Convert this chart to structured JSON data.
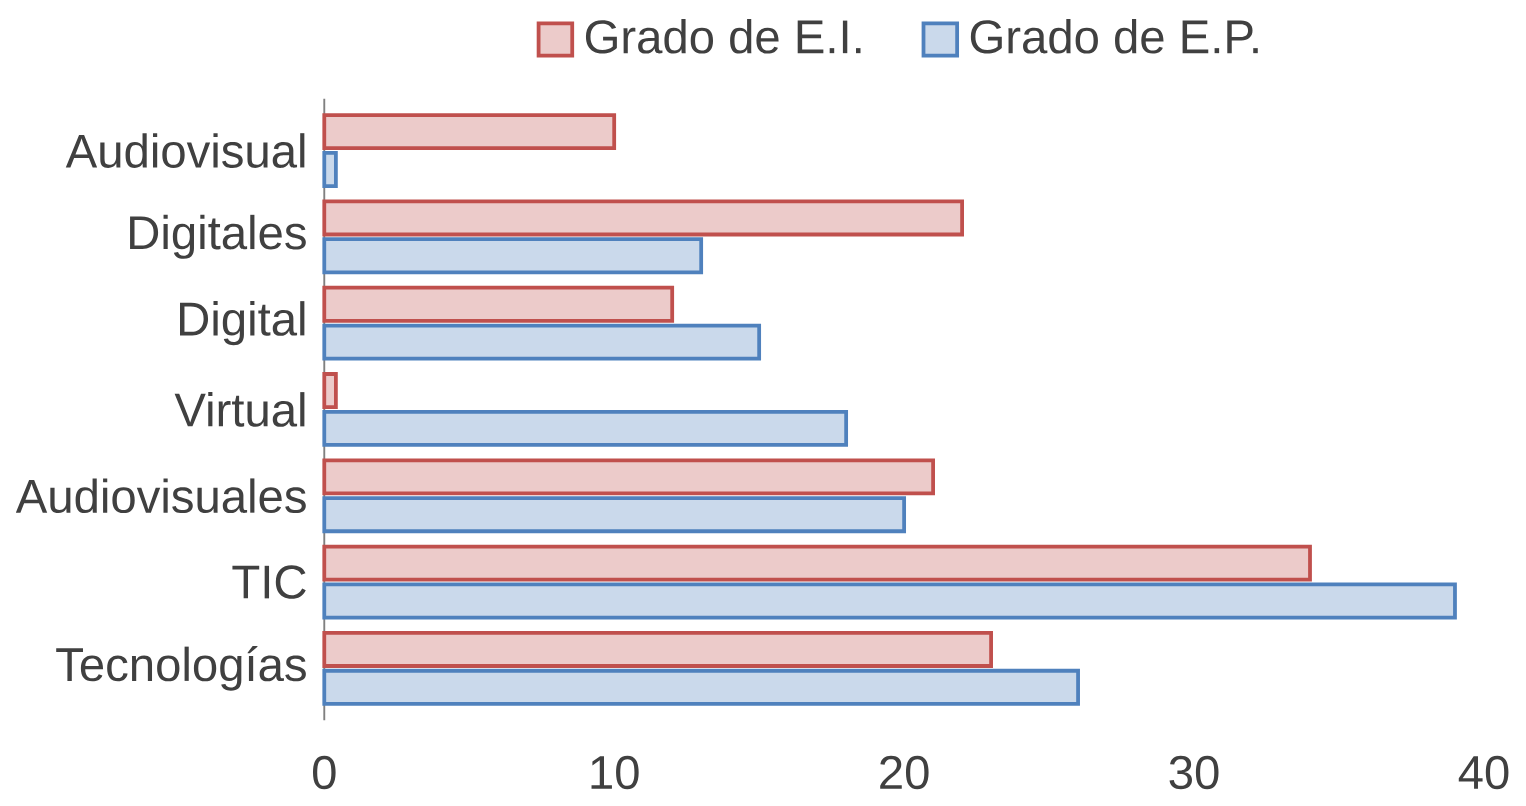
{
  "chart_data": {
    "type": "bar",
    "orientation": "horizontal",
    "categories": [
      "Audiovisual",
      "Digitales",
      "Digital",
      "Virtual",
      "Audiovisuales",
      "TIC",
      "Tecnologías"
    ],
    "series": [
      {
        "name": "Grado de E.I.",
        "color": "#c0504d",
        "values": [
          10,
          22,
          12,
          0.4,
          21,
          34,
          23
        ]
      },
      {
        "name": "Grado de E.P.",
        "color": "#4f81bd",
        "values": [
          0.4,
          13,
          15,
          18,
          20,
          39,
          26
        ]
      }
    ],
    "xlim": [
      0,
      40
    ],
    "xticks": [
      0,
      10,
      20,
      30,
      40
    ],
    "legend": "top",
    "grid": false
  }
}
